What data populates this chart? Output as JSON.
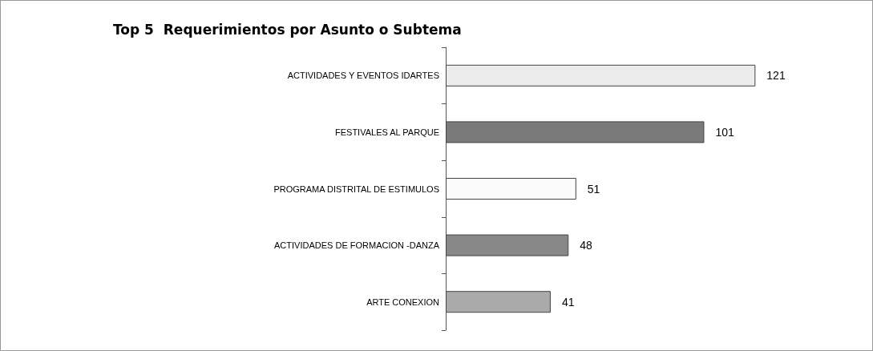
{
  "chart_data": {
    "type": "bar",
    "orientation": "horizontal",
    "title": "Top 5  Requerimientos por Asunto o Subtema",
    "categories": [
      "ACTIVIDADES Y EVENTOS IDARTES",
      "FESTIVALES AL PARQUE",
      "PROGRAMA DISTRITAL DE ESTIMULOS",
      "ACTIVIDADES DE FORMACION -DANZA",
      "ARTE CONEXION"
    ],
    "values": [
      121,
      101,
      51,
      48,
      41
    ],
    "colors": [
      "#ececec",
      "#7a7a7a",
      "#fbfbfb",
      "#888888",
      "#aaaaaa"
    ],
    "data_labels": true
  }
}
